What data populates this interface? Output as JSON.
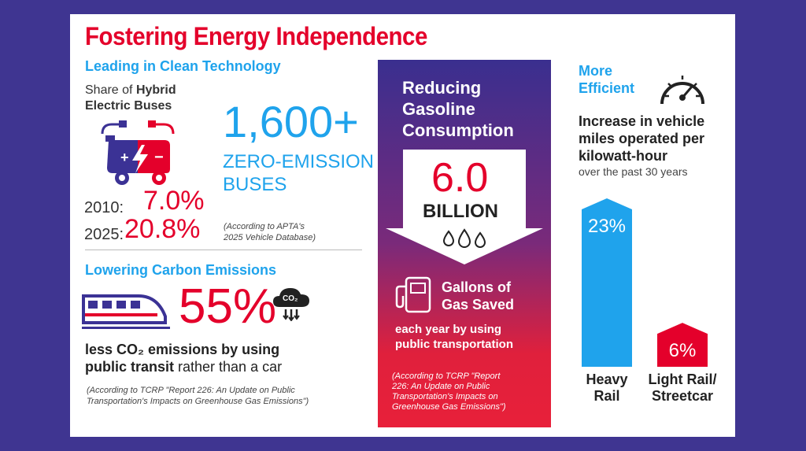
{
  "title": "Fostering Energy Independence",
  "clean_tech": {
    "heading": "Leading in Clean Technology",
    "share_prefix": "Share of ",
    "share_bold_1": "Hybrid",
    "share_bold_2": "Electric Buses",
    "year_2010_label": "2010:",
    "year_2010_value": "7.0%",
    "year_2025_label": "2025:",
    "year_2025_value": "20.8%",
    "zero_count": "1,600+",
    "zero_line1": "ZERO-EMISSION",
    "zero_line2": "BUSES",
    "zero_note_1": "(According to APTA's",
    "zero_note_2": "2025 Vehicle Database)"
  },
  "carbon": {
    "heading": "Lowering Carbon Emissions",
    "percent": "55%",
    "co2_icon_text": "CO₂",
    "line1": "less CO₂ emissions by using",
    "line2_bold": "public transit",
    "line2_rest": " rather than a car",
    "note_1": "(According to TCRP \"Report 226: An Update on Public",
    "note_2": "Transportation's Impacts on Greenhouse Gas Emissions\")"
  },
  "gasoline": {
    "heading_1": "Reducing",
    "heading_2": "Gasoline",
    "heading_3": "Consumption",
    "amount": "6.0",
    "unit": "BILLION",
    "gallons_1": "Gallons of",
    "gallons_2": "Gas Saved",
    "each_1": "each year by using",
    "each_2": "public transportation",
    "note_1": "(According to TCRP \"Report",
    "note_2": "226: An Update on Public",
    "note_3": "Transportation's Impacts on",
    "note_4": "Greenhouse Gas Emissions\")"
  },
  "efficiency": {
    "heading_1": "More",
    "heading_2": "Efficient",
    "desc_1": "Increase in vehicle",
    "desc_2": "miles operated per",
    "desc_3": "kilowatt-hour",
    "desc_4": "over the past 30 years"
  },
  "chart_data": {
    "type": "bar",
    "categories": [
      "Heavy Rail",
      "Light Rail/ Streetcar"
    ],
    "values": [
      23,
      6
    ],
    "labels": [
      "23%",
      "6%"
    ],
    "category_lines": [
      [
        "Heavy",
        "Rail"
      ],
      [
        "Light Rail/",
        "Streetcar"
      ]
    ],
    "colors": [
      "#1fa3ec",
      "#e4002b"
    ],
    "ylim": [
      0,
      23
    ]
  }
}
